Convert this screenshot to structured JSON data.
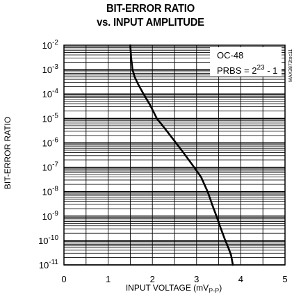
{
  "chart_data": {
    "type": "line",
    "title_line1": "BIT-ERROR RATIO",
    "title_line2": "vs. INPUT AMPLITUDE",
    "xlabel_main": "INPUT VOLTAGE (mV",
    "xlabel_sub": "P-P",
    "xlabel_close": ")",
    "ylabel": "BIT-ERROR RATIO",
    "xlim": [
      0,
      5
    ],
    "ylim_exp": [
      -11,
      -2
    ],
    "y_log_scale": true,
    "x_ticks": [
      "0",
      "1",
      "2",
      "3",
      "4",
      "5"
    ],
    "y_tick_base": "10",
    "y_tick_exponents": [
      "-2",
      "-3",
      "-4",
      "-5",
      "-6",
      "-7",
      "-8",
      "-9",
      "-10",
      "-11"
    ],
    "annotation_line1": "OC-48",
    "annotation_line2_prefix": "PRBS = 2",
    "annotation_line2_exp": "23",
    "annotation_line2_suffix": " - 1",
    "side_code": "MAX3872toc11",
    "grid": true,
    "series": [
      {
        "x": [
          1.5,
          1.52,
          1.55,
          1.6,
          1.68,
          1.8,
          1.95,
          2.1,
          2.3,
          2.5,
          2.7,
          2.9,
          3.1,
          3.25,
          3.35,
          3.45,
          3.55,
          3.65,
          3.72,
          3.78,
          3.82
        ],
        "y": [
          0.01,
          0.003,
          0.001,
          0.0005,
          0.00025,
          0.0001,
          3.5e-05,
          1e-05,
          3.5e-06,
          1.2e-06,
          4e-07,
          1.3e-07,
          4e-08,
          1e-08,
          3e-09,
          1e-09,
          3e-10,
          1e-10,
          5e-11,
          2.5e-11,
          1e-11
        ]
      }
    ]
  }
}
